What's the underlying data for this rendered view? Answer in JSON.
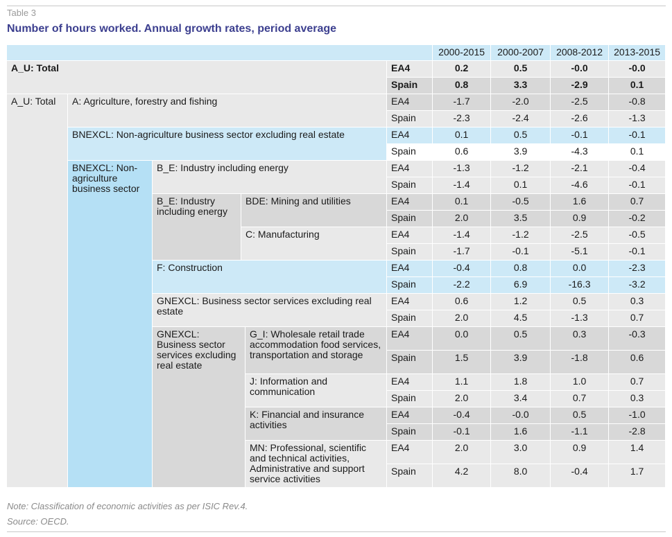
{
  "caption": "Table 3",
  "title": "Number of hours worked. Annual growth rates, period average",
  "columns": [
    "2000-2015",
    "2000-2007",
    "2008-2012",
    "2013-2015"
  ],
  "labels": {
    "a_u_total": "A_U: Total",
    "a_agri": "A: Agriculture, forestry and fishing",
    "bnexcl_full": "BNEXCL: Non-agriculture business sector excluding real estate",
    "bnexcl_short": "BNEXCL: Non-agriculture business sector",
    "b_e": "B_E: Industry including energy",
    "bde": "BDE: Mining and utilities",
    "c_manuf": "C: Manufacturing",
    "f_constr": "F: Construction",
    "gnexcl_full": "GNEXCL: Business sector services excluding real estate",
    "gnexcl_short": "GNEXCL: Business sector services excluding real estate",
    "g_i": "G_I: Wholesale retail trade accommodation food services, transportation and storage",
    "j_info": "J: Information and communication",
    "k_fin": "K: Financial and insurance activities",
    "mn_prof": "MN: Professional, scientific and technical activities, Administrative and support service activities"
  },
  "rows": [
    {
      "region": "EA4",
      "values": [
        "0.2",
        "0.5",
        "-0.0",
        "-0.0"
      ]
    },
    {
      "region": "Spain",
      "values": [
        "0.8",
        "3.3",
        "-2.9",
        "0.1"
      ]
    },
    {
      "region": "EA4",
      "values": [
        "-1.7",
        "-2.0",
        "-2.5",
        "-0.8"
      ]
    },
    {
      "region": "Spain",
      "values": [
        "-2.3",
        "-2.4",
        "-2.6",
        "-1.3"
      ]
    },
    {
      "region": "EA4",
      "values": [
        "0.1",
        "0.5",
        "-0.1",
        "-0.1"
      ]
    },
    {
      "region": "Spain",
      "values": [
        "0.6",
        "3.9",
        "-4.3",
        "0.1"
      ]
    },
    {
      "region": "EA4",
      "values": [
        "-1.3",
        "-1.2",
        "-2.1",
        "-0.4"
      ]
    },
    {
      "region": "Spain",
      "values": [
        "-1.4",
        "0.1",
        "-4.6",
        "-0.1"
      ]
    },
    {
      "region": "EA4",
      "values": [
        "0.1",
        "-0.5",
        "1.6",
        "0.7"
      ]
    },
    {
      "region": "Spain",
      "values": [
        "2.0",
        "3.5",
        "0.9",
        "-0.2"
      ]
    },
    {
      "region": "EA4",
      "values": [
        "-1.4",
        "-1.2",
        "-2.5",
        "-0.5"
      ]
    },
    {
      "region": "Spain",
      "values": [
        "-1.7",
        "-0.1",
        "-5.1",
        "-0.1"
      ]
    },
    {
      "region": "EA4",
      "values": [
        "-0.4",
        "0.8",
        "0.0",
        "-2.3"
      ]
    },
    {
      "region": "Spain",
      "values": [
        "-2.2",
        "6.9",
        "-16.3",
        "-3.2"
      ]
    },
    {
      "region": "EA4",
      "values": [
        "0.6",
        "1.2",
        "0.5",
        "0.3"
      ]
    },
    {
      "region": "Spain",
      "values": [
        "2.0",
        "4.5",
        "-1.3",
        "0.7"
      ]
    },
    {
      "region": "EA4",
      "values": [
        "0.0",
        "0.5",
        "0.3",
        "-0.3"
      ]
    },
    {
      "region": "Spain",
      "values": [
        "1.5",
        "3.9",
        "-1.8",
        "0.6"
      ]
    },
    {
      "region": "EA4",
      "values": [
        "1.1",
        "1.8",
        "1.0",
        "0.7"
      ]
    },
    {
      "region": "Spain",
      "values": [
        "2.0",
        "3.4",
        "0.7",
        "0.3"
      ]
    },
    {
      "region": "EA4",
      "values": [
        "-0.4",
        "-0.0",
        "0.5",
        "-1.0"
      ]
    },
    {
      "region": "Spain",
      "values": [
        "-0.1",
        "1.6",
        "-1.1",
        "-2.8"
      ]
    },
    {
      "region": "EA4",
      "values": [
        "2.0",
        "3.0",
        "0.9",
        "1.4"
      ]
    },
    {
      "region": "Spain",
      "values": [
        "4.2",
        "8.0",
        "-0.4",
        "1.7"
      ]
    }
  ],
  "note": "Note: Classification of economic activities as per ISIC Rev.4.",
  "source": "Source: OECD."
}
